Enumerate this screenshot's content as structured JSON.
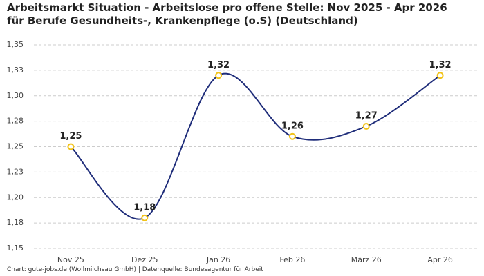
{
  "chart_data": {
    "type": "line",
    "title": "Arbeitsmarkt Situation - Arbeitslose pro offene Stelle: Nov 2025 - Apr 2026 für Berufe Gesundheits-, Krankenpflege (o.S) (Deutschland)",
    "source": "Chart: gute-jobs.de (Wollmilchsau GmbH) | Datenquelle: Bundesagentur für Arbeit",
    "categories": [
      "Nov 25",
      "Dez 25",
      "Jan 26",
      "Feb 26",
      "März 26",
      "Apr 26"
    ],
    "series": [
      {
        "color": "#1f2d7a",
        "marker_color": "#f2c318",
        "values": [
          1.25,
          1.18,
          1.32,
          1.26,
          1.27,
          1.32
        ],
        "value_labels": [
          "1,25",
          "1,18",
          "1,32",
          "1,26",
          "1,27",
          "1,32"
        ]
      }
    ],
    "ylim": [
      1.15,
      1.35
    ],
    "yticks": [
      {
        "value": 1.15,
        "label": "1,15"
      },
      {
        "value": 1.175,
        "label": "1,18"
      },
      {
        "value": 1.2,
        "label": "1,20"
      },
      {
        "value": 1.225,
        "label": "1,23"
      },
      {
        "value": 1.25,
        "label": "1,25"
      },
      {
        "value": 1.275,
        "label": "1,28"
      },
      {
        "value": 1.3,
        "label": "1,30"
      },
      {
        "value": 1.325,
        "label": "1,33"
      },
      {
        "value": 1.35,
        "label": "1,35"
      }
    ],
    "grid": true
  }
}
